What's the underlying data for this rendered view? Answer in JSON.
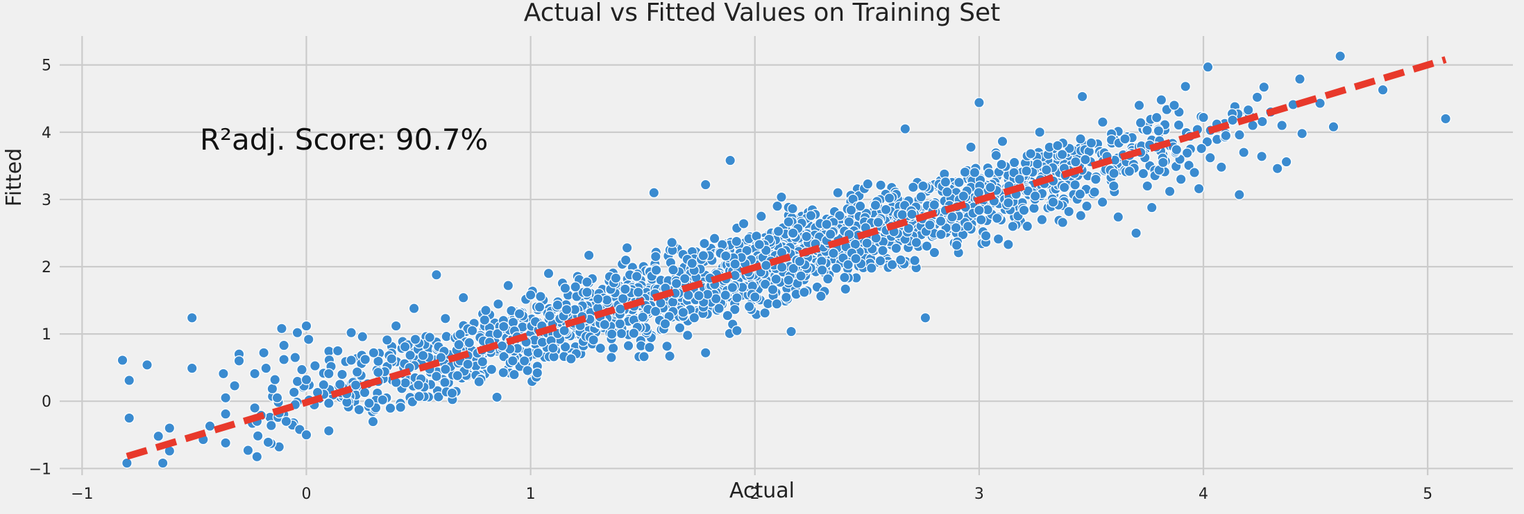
{
  "colors": {
    "background": "#f0f0f0",
    "grid": "#cbcbcb",
    "points": "#3a8bd0",
    "point_edge": "#ffffff",
    "fit_line": "#e8392b"
  },
  "chart_data": {
    "type": "scatter",
    "title": "Actual vs Fitted Values on Training Set",
    "xlabel": "Actual",
    "ylabel": "Fitted",
    "annotation": "R²adj. Score: 90.7%",
    "xlim": [
      -1.1,
      5.38
    ],
    "ylim": [
      -1.1,
      5.43
    ],
    "xticks": [
      -1,
      0,
      1,
      2,
      3,
      4,
      5
    ],
    "yticks": [
      -1,
      0,
      1,
      2,
      3,
      4,
      5
    ],
    "xtick_labels": [
      "−1",
      "0",
      "1",
      "2",
      "3",
      "4",
      "5"
    ],
    "ytick_labels": [
      "−1",
      "0",
      "1",
      "2",
      "3",
      "4",
      "5"
    ],
    "grid": true,
    "reference_line": {
      "style": "dashed",
      "x": [
        -0.8,
        5.08
      ],
      "y": [
        -0.82,
        5.08
      ]
    },
    "points": [
      [
        -0.82,
        0.61
      ],
      [
        -0.79,
        0.31
      ],
      [
        -0.79,
        -0.25
      ],
      [
        -0.8,
        -0.92
      ],
      [
        -0.71,
        0.54
      ],
      [
        -0.66,
        -0.52
      ],
      [
        -0.64,
        -0.92
      ],
      [
        -0.61,
        -0.4
      ],
      [
        -0.61,
        -0.74
      ],
      [
        -0.51,
        1.24
      ],
      [
        -0.51,
        0.49
      ],
      [
        -0.46,
        -0.57
      ],
      [
        -0.43,
        -0.37
      ],
      [
        -0.37,
        0.41
      ],
      [
        -0.36,
        0.05
      ],
      [
        -0.36,
        -0.19
      ],
      [
        -0.36,
        -0.62
      ],
      [
        -0.32,
        0.23
      ],
      [
        -0.3,
        0.7
      ],
      [
        -0.3,
        0.6
      ],
      [
        -0.26,
        -0.73
      ],
      [
        -0.23,
        0.41
      ],
      [
        -0.23,
        -0.1
      ],
      [
        -0.22,
        -0.3
      ],
      [
        -0.19,
        0.72
      ],
      [
        -0.18,
        0.49
      ],
      [
        -0.17,
        -0.61
      ],
      [
        -0.14,
        0.32
      ],
      [
        -0.13,
        0.05
      ],
      [
        -0.11,
        1.08
      ],
      [
        -0.1,
        0.83
      ],
      [
        -0.1,
        0.62
      ],
      [
        -0.09,
        -0.3
      ],
      [
        -0.05,
        0.65
      ],
      [
        -0.05,
        -0.05
      ],
      [
        -0.04,
        1.02
      ],
      [
        -0.03,
        -0.42
      ],
      [
        -0.02,
        0.47
      ],
      [
        0.0,
        1.12
      ],
      [
        0.01,
        0.92
      ],
      [
        0.0,
        0.32
      ],
      [
        0.0,
        -0.5
      ],
      [
        0.05,
        0.13
      ],
      [
        0.1,
        0.41
      ],
      [
        0.1,
        -0.03
      ],
      [
        0.1,
        -0.44
      ],
      [
        0.14,
        0.75
      ],
      [
        0.15,
        0.25
      ],
      [
        0.18,
        0.11
      ],
      [
        0.2,
        1.02
      ],
      [
        0.2,
        0.61
      ],
      [
        0.22,
        0.24
      ],
      [
        0.25,
        0.96
      ],
      [
        0.26,
        0.13
      ],
      [
        0.28,
        -0.03
      ],
      [
        0.3,
        0.72
      ],
      [
        0.32,
        0.43
      ],
      [
        0.34,
        0.02
      ],
      [
        0.36,
        0.91
      ],
      [
        0.38,
        0.63
      ],
      [
        0.4,
        1.12
      ],
      [
        0.4,
        0.28
      ],
      [
        0.42,
        -0.09
      ],
      [
        0.44,
        0.81
      ],
      [
        0.46,
        0.5
      ],
      [
        0.48,
        1.38
      ],
      [
        0.5,
        0.24
      ],
      [
        0.52,
        0.68
      ],
      [
        0.55,
        0.95
      ],
      [
        0.58,
        1.88
      ],
      [
        0.58,
        0.37
      ],
      [
        0.6,
        0.65
      ],
      [
        0.62,
        1.23
      ],
      [
        0.65,
        0.12
      ],
      [
        0.68,
        0.84
      ],
      [
        0.7,
        1.54
      ],
      [
        0.72,
        0.55
      ],
      [
        0.74,
        1.05
      ],
      [
        0.77,
        0.29
      ],
      [
        0.8,
        1.35
      ],
      [
        0.82,
        0.78
      ],
      [
        0.85,
        0.06
      ],
      [
        0.88,
        1.11
      ],
      [
        0.9,
        1.72
      ],
      [
        0.92,
        0.6
      ],
      [
        0.95,
        1.3
      ],
      [
        0.98,
        0.88
      ],
      [
        1.0,
        1.58
      ],
      [
        1.03,
        0.42
      ],
      [
        1.05,
        1.12
      ],
      [
        1.08,
        1.9
      ],
      [
        1.1,
        0.79
      ],
      [
        1.12,
        1.43
      ],
      [
        1.15,
        1.05
      ],
      [
        1.18,
        0.63
      ],
      [
        1.2,
        1.7
      ],
      [
        1.23,
        1.26
      ],
      [
        1.26,
        2.17
      ],
      [
        1.28,
        0.91
      ],
      [
        1.3,
        1.52
      ],
      [
        1.33,
        1.14
      ],
      [
        1.36,
        0.65
      ],
      [
        1.38,
        1.83
      ],
      [
        1.4,
        1.37
      ],
      [
        1.43,
        2.28
      ],
      [
        1.46,
        1.01
      ],
      [
        1.48,
        1.62
      ],
      [
        1.5,
        1.25
      ],
      [
        1.53,
        0.8
      ],
      [
        1.55,
        3.1
      ],
      [
        1.56,
        1.95
      ],
      [
        1.58,
        1.46
      ],
      [
        1.6,
        1.15
      ],
      [
        1.63,
        2.36
      ],
      [
        1.65,
        1.75
      ],
      [
        1.68,
        1.32
      ],
      [
        1.7,
        0.98
      ],
      [
        1.72,
        2.05
      ],
      [
        1.75,
        1.57
      ],
      [
        1.78,
        3.22
      ],
      [
        1.78,
        0.72
      ],
      [
        1.8,
        1.83
      ],
      [
        1.82,
        2.42
      ],
      [
        1.84,
        1.38
      ],
      [
        1.87,
        2.16
      ],
      [
        1.89,
        3.58
      ],
      [
        1.9,
        1.69
      ],
      [
        1.92,
        1.05
      ],
      [
        1.95,
        2.64
      ],
      [
        1.97,
        1.92
      ],
      [
        2.0,
        1.55
      ],
      [
        2.02,
        2.33
      ],
      [
        2.05,
        2.02
      ],
      [
        2.08,
        1.66
      ],
      [
        2.1,
        2.9
      ],
      [
        2.12,
        2.21
      ],
      [
        2.15,
        1.8
      ],
      [
        2.17,
        2.5
      ],
      [
        2.2,
        2.08
      ],
      [
        2.22,
        1.62
      ],
      [
        2.25,
        2.76
      ],
      [
        2.27,
        2.34
      ],
      [
        2.3,
        1.95
      ],
      [
        2.32,
        2.63
      ],
      [
        2.35,
        2.2
      ],
      [
        2.37,
        3.1
      ],
      [
        2.4,
        1.84
      ],
      [
        2.42,
        2.48
      ],
      [
        2.45,
        2.12
      ],
      [
        2.47,
        2.9
      ],
      [
        2.5,
        2.35
      ],
      [
        2.52,
        1.98
      ],
      [
        2.55,
        2.66
      ],
      [
        2.57,
        2.24
      ],
      [
        2.6,
        3.02
      ],
      [
        2.62,
        2.52
      ],
      [
        2.65,
        2.1
      ],
      [
        2.67,
        4.05
      ],
      [
        2.7,
        2.78
      ],
      [
        2.72,
        2.36
      ],
      [
        2.75,
        3.2
      ],
      [
        2.76,
        1.24
      ],
      [
        2.78,
        2.62
      ],
      [
        2.8,
        2.92
      ],
      [
        2.83,
        2.48
      ],
      [
        2.85,
        3.26
      ],
      [
        2.88,
        2.74
      ],
      [
        2.9,
        2.32
      ],
      [
        2.93,
        3.05
      ],
      [
        2.95,
        2.6
      ],
      [
        2.98,
        3.4
      ],
      [
        3.0,
        4.44
      ],
      [
        3.0,
        2.84
      ],
      [
        3.03,
        2.46
      ],
      [
        3.05,
        3.18
      ],
      [
        3.08,
        2.72
      ],
      [
        3.1,
        3.52
      ],
      [
        3.13,
        2.95
      ],
      [
        3.15,
        2.6
      ],
      [
        3.18,
        3.3
      ],
      [
        3.2,
        2.84
      ],
      [
        3.23,
        3.68
      ],
      [
        3.25,
        3.05
      ],
      [
        3.27,
        4.0
      ],
      [
        3.28,
        2.7
      ],
      [
        3.3,
        3.44
      ],
      [
        3.33,
        2.96
      ],
      [
        3.35,
        3.8
      ],
      [
        3.38,
        3.18
      ],
      [
        3.4,
        2.82
      ],
      [
        3.43,
        3.56
      ],
      [
        3.46,
        4.53
      ],
      [
        3.45,
        3.08
      ],
      [
        3.48,
        2.9
      ],
      [
        3.5,
        3.84
      ],
      [
        3.52,
        3.3
      ],
      [
        3.55,
        2.96
      ],
      [
        3.57,
        3.64
      ],
      [
        3.6,
        3.2
      ],
      [
        3.62,
        2.74
      ],
      [
        3.65,
        3.9
      ],
      [
        3.67,
        3.42
      ],
      [
        3.7,
        2.5
      ],
      [
        3.72,
        3.7
      ],
      [
        3.75,
        3.2
      ],
      [
        3.77,
        2.88
      ],
      [
        3.8,
        4.02
      ],
      [
        3.82,
        3.55
      ],
      [
        3.85,
        3.12
      ],
      [
        3.87,
        4.4
      ],
      [
        3.88,
        3.74
      ],
      [
        3.9,
        3.3
      ],
      [
        3.92,
        4.68
      ],
      [
        3.94,
        3.94
      ],
      [
        3.96,
        3.4
      ],
      [
        3.98,
        3.16
      ],
      [
        4.0,
        4.22
      ],
      [
        4.02,
        4.97
      ],
      [
        4.03,
        3.62
      ],
      [
        4.06,
        4.12
      ],
      [
        4.08,
        3.48
      ],
      [
        4.1,
        3.95
      ],
      [
        4.13,
        4.18
      ],
      [
        4.16,
        3.07
      ],
      [
        4.18,
        3.7
      ],
      [
        4.2,
        4.33
      ],
      [
        4.22,
        4.1
      ],
      [
        4.24,
        4.52
      ],
      [
        4.26,
        3.64
      ],
      [
        4.27,
        4.67
      ],
      [
        4.3,
        4.3
      ],
      [
        4.33,
        3.46
      ],
      [
        4.35,
        4.1
      ],
      [
        4.37,
        3.56
      ],
      [
        4.4,
        4.41
      ],
      [
        4.43,
        4.79
      ],
      [
        4.44,
        3.98
      ],
      [
        4.52,
        4.43
      ],
      [
        4.58,
        4.08
      ],
      [
        4.61,
        5.13
      ],
      [
        4.8,
        4.63
      ],
      [
        5.08,
        4.2
      ]
    ],
    "cloud": {
      "n": 2000,
      "x_range": [
        -0.3,
        4.3
      ],
      "spread": 0.28
    }
  }
}
